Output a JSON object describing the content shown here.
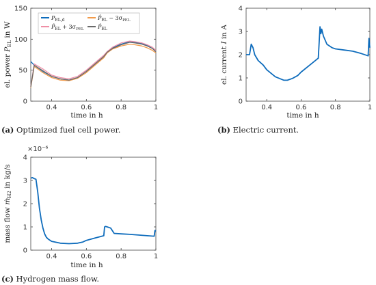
{
  "colors": {
    "blue": "#0e6cbc",
    "orange": "#f29a49",
    "pink": "#ef8fa6",
    "gray": "#6a6a6a"
  },
  "chart_data": [
    {
      "id": "a",
      "type": "line",
      "caption_label": "(a)",
      "caption_text": "Optimized fuel cell power.",
      "xlabel": "time in h",
      "ylabel": "el. power P_EL in W",
      "xlim": [
        0.28,
        1.0
      ],
      "ylim": [
        0,
        150
      ],
      "xticks": [
        "0.4",
        "0.6",
        "0.8",
        "1"
      ],
      "yticks": [
        "0",
        "50",
        "100",
        "150"
      ],
      "legend": [
        "P_EL,d",
        "P̂_EL + 3σ_PEL",
        "P̂_EL − 3σ_PEL",
        "P̂_EL"
      ],
      "series": [
        {
          "name": "P_EL,d",
          "color": "blue",
          "x": [
            0.28,
            0.3,
            0.35,
            0.4,
            0.45,
            0.5,
            0.55,
            0.6,
            0.65,
            0.7,
            0.72,
            0.75,
            0.8,
            0.85,
            0.88,
            0.92,
            0.95,
            0.98,
            1.0
          ],
          "y": [
            64,
            58,
            48,
            40,
            36,
            34,
            38,
            48,
            60,
            72,
            80,
            86,
            92,
            96,
            95,
            93,
            90,
            85,
            80
          ]
        },
        {
          "name": "P̂_EL + 3σ_PEL",
          "color": "pink",
          "x": [
            0.28,
            0.3,
            0.35,
            0.4,
            0.45,
            0.5,
            0.55,
            0.6,
            0.65,
            0.7,
            0.72,
            0.75,
            0.8,
            0.85,
            0.88,
            0.92,
            0.95,
            0.98,
            1.0
          ],
          "y": [
            24,
            60,
            52,
            42,
            38,
            36,
            40,
            50,
            62,
            74,
            80,
            87,
            94,
            97,
            96,
            94,
            91,
            87,
            82
          ]
        },
        {
          "name": "P̂_EL − 3σ_PEL",
          "color": "orange",
          "x": [
            0.28,
            0.3,
            0.35,
            0.4,
            0.45,
            0.5,
            0.55,
            0.6,
            0.65,
            0.7,
            0.72,
            0.75,
            0.8,
            0.85,
            0.88,
            0.92,
            0.95,
            0.98,
            1.0
          ],
          "y": [
            22,
            56,
            46,
            38,
            34,
            33,
            37,
            46,
            58,
            70,
            78,
            84,
            89,
            92,
            91,
            89,
            86,
            82,
            78
          ]
        },
        {
          "name": "P̂_EL",
          "color": "gray",
          "x": [
            0.28,
            0.3,
            0.35,
            0.4,
            0.45,
            0.5,
            0.55,
            0.6,
            0.65,
            0.7,
            0.72,
            0.75,
            0.8,
            0.85,
            0.88,
            0.92,
            0.95,
            0.98,
            1.0
          ],
          "y": [
            23,
            58,
            49,
            40,
            36,
            34,
            38,
            48,
            60,
            72,
            79,
            85,
            91,
            95,
            94,
            92,
            89,
            85,
            80
          ]
        }
      ]
    },
    {
      "id": "b",
      "type": "line",
      "caption_label": "(b)",
      "caption_text": "Electric current.",
      "xlabel": "time in h",
      "ylabel": "el. current I in A",
      "xlim": [
        0.28,
        1.0
      ],
      "ylim": [
        0,
        4
      ],
      "xticks": [
        "0.4",
        "0.6",
        "0.8",
        "1"
      ],
      "yticks": [
        "0",
        "1",
        "2",
        "3",
        "4"
      ],
      "series": [
        {
          "name": "",
          "color": "blue",
          "x": [
            0.28,
            0.3,
            0.31,
            0.32,
            0.33,
            0.35,
            0.38,
            0.4,
            0.45,
            0.5,
            0.52,
            0.55,
            0.58,
            0.6,
            0.65,
            0.7,
            0.705,
            0.71,
            0.715,
            0.72,
            0.73,
            0.75,
            0.78,
            0.8,
            0.85,
            0.9,
            0.95,
            0.99,
            0.995,
            1.0
          ],
          "y": [
            2.0,
            2.0,
            2.45,
            2.3,
            2.0,
            1.75,
            1.55,
            1.35,
            1.05,
            0.9,
            0.9,
            0.98,
            1.1,
            1.25,
            1.55,
            1.85,
            2.5,
            3.2,
            2.9,
            3.1,
            2.8,
            2.45,
            2.3,
            2.25,
            2.2,
            2.15,
            2.05,
            1.95,
            2.7,
            2.3
          ]
        }
      ]
    },
    {
      "id": "c",
      "type": "line",
      "caption_label": "(c)",
      "caption_text": "Hydrogen mass flow.",
      "xlabel": "time in h",
      "ylabel": "mass flow ṁ_H2 in kg/s",
      "multiplier": "×10⁻⁶",
      "xlim": [
        0.28,
        1.0
      ],
      "ylim": [
        0,
        4
      ],
      "xticks": [
        "0.4",
        "0.6",
        "0.8",
        "1"
      ],
      "yticks": [
        "0",
        "1",
        "2",
        "3",
        "4"
      ],
      "series": [
        {
          "name": "",
          "color": "blue",
          "x": [
            0.28,
            0.29,
            0.3,
            0.31,
            0.32,
            0.33,
            0.34,
            0.35,
            0.36,
            0.37,
            0.38,
            0.4,
            0.45,
            0.5,
            0.55,
            0.58,
            0.6,
            0.65,
            0.7,
            0.705,
            0.71,
            0.72,
            0.74,
            0.76,
            0.8,
            0.85,
            0.9,
            0.95,
            0.99,
            0.995,
            1.0
          ],
          "y": [
            3.1,
            3.12,
            3.08,
            3.05,
            2.5,
            1.8,
            1.3,
            0.95,
            0.7,
            0.55,
            0.48,
            0.38,
            0.3,
            0.28,
            0.3,
            0.35,
            0.42,
            0.52,
            0.62,
            1.0,
            1.02,
            1.0,
            0.95,
            0.72,
            0.7,
            0.68,
            0.65,
            0.62,
            0.6,
            0.85,
            0.82
          ]
        }
      ]
    }
  ]
}
